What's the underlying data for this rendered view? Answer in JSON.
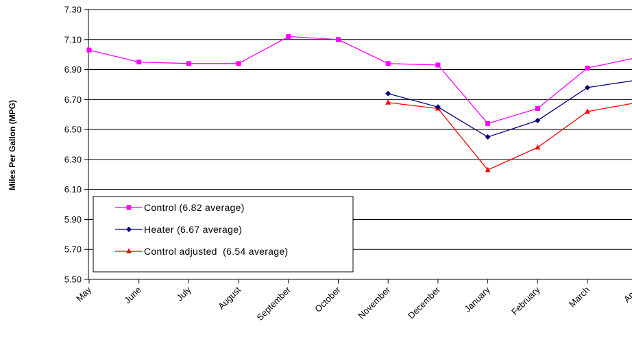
{
  "chart_data": {
    "type": "line",
    "title": "",
    "xlabel": "",
    "ylabel": "Miles Per Gallon (MPG)",
    "categories": [
      "May",
      "June",
      "July",
      "August",
      "September",
      "October",
      "November",
      "December",
      "January",
      "February",
      "March",
      "April"
    ],
    "ylim": [
      5.5,
      7.3
    ],
    "yticks": [
      "5.50",
      "5.70",
      "5.90",
      "6.10",
      "6.30",
      "6.50",
      "6.70",
      "6.90",
      "7.10",
      "7.30"
    ],
    "grid": true,
    "legend_position": "bottom-left",
    "series": [
      {
        "name": "Control (6.82 average)",
        "color": "#ff00ff",
        "marker": "square",
        "values": [
          7.03,
          6.95,
          6.94,
          6.94,
          7.12,
          7.1,
          6.94,
          6.93,
          6.54,
          6.64,
          6.91,
          6.98
        ]
      },
      {
        "name": "Heater (6.67 average)",
        "color": "#000080",
        "marker": "diamond",
        "values": [
          null,
          null,
          null,
          null,
          null,
          null,
          6.74,
          6.65,
          6.45,
          6.56,
          6.78,
          6.83
        ]
      },
      {
        "name": "Control adjusted  (6.54 average)",
        "color": "#ff0000",
        "marker": "triangle",
        "values": [
          null,
          null,
          null,
          null,
          null,
          null,
          6.68,
          6.64,
          6.23,
          6.38,
          6.62,
          6.68
        ]
      }
    ]
  }
}
